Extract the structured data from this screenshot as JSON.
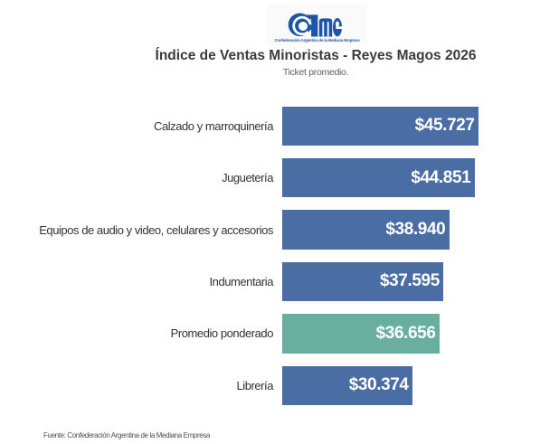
{
  "logo": {
    "name": "CAME",
    "wordmark_c": "C",
    "wordmark_rest": "ame",
    "tagline": "Confederación Argentina de la Mediana Empresa"
  },
  "header": {
    "title": "Índice de Ventas Minoristas - Reyes Magos 2026",
    "subtitle": "Ticket promedio."
  },
  "footer": {
    "source": "Fuente: Confederación Argentina de la Mediana Empresa"
  },
  "colors": {
    "bar_blue": "#4a6da4",
    "bar_highlight_green": "#69ae9f",
    "logo_blue": "#1d56a5",
    "title_text": "#3b3b3b",
    "label_text": "#333333",
    "value_text": "#ffffff"
  },
  "chart_data": {
    "type": "bar",
    "orientation": "horizontal",
    "title": "Índice de Ventas Minoristas - Reyes Magos 2026",
    "subtitle": "Ticket promedio.",
    "xlabel": "",
    "ylabel": "",
    "axis_ticks_visible": false,
    "grid": false,
    "legend": false,
    "value_range": [
      0,
      45727
    ],
    "categories": [
      "Calzado y marroquinería",
      "Juguetería",
      "Equipos de audio y video, celulares y accesorios",
      "Indumentaria",
      "Promedio ponderado",
      "Librería"
    ],
    "values": [
      45727,
      44851,
      38940,
      37595,
      36656,
      30374
    ],
    "value_labels": [
      "$45.727",
      "$44.851",
      "$38.940",
      "$37.595",
      "$36.656",
      "$30.374"
    ],
    "highlight_category": "Promedio ponderado",
    "bar_colors": [
      "#4a6da4",
      "#4a6da4",
      "#4a6da4",
      "#4a6da4",
      "#69ae9f",
      "#4a6da4"
    ]
  }
}
